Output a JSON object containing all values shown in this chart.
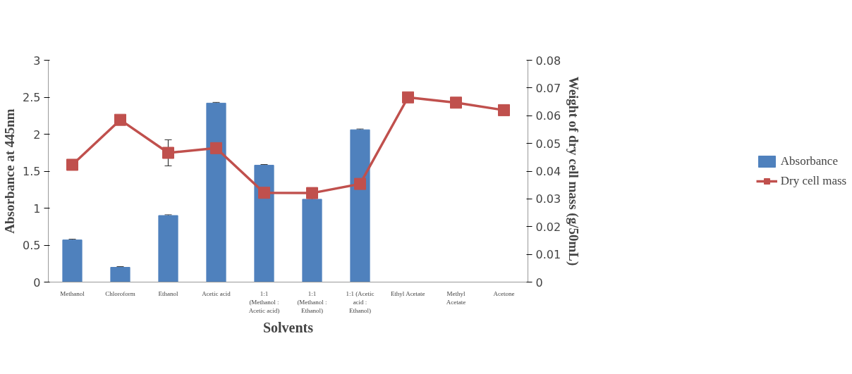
{
  "chart_data": {
    "type": "bar",
    "xlabel": "Solvents",
    "ylabel": "Absorbance at 445nm",
    "y2label": "Weight of dry cell mass (g/50mL)",
    "categories": [
      "Methanol",
      "Chloroform",
      "Ethanol",
      "Acetic acid",
      "1:1\n(Methanol :\nAcetic acid)",
      "1:1\n(Methanol :\nEthanol)",
      "1:1 (Acetic\nacid :\nEthanol)",
      "Ethyl Acetate",
      "Methyl\nAcetate",
      "Acetone"
    ],
    "series": [
      {
        "name": "Absorbance",
        "color": "#4f81bd",
        "values": [
          0.57,
          0.2,
          0.9,
          2.42,
          1.58,
          1.12,
          2.06,
          null,
          null,
          null
        ],
        "errors": [
          0.01,
          0.01,
          0.01,
          0.01,
          0.01,
          0.01,
          0.01,
          null,
          null,
          null
        ]
      },
      {
        "name": "Dry cell mass",
        "type": "line",
        "axis": "y2",
        "color": "#c0504d",
        "marker": "square",
        "values": [
          0.0423,
          0.0585,
          0.0466,
          0.0483,
          0.0322,
          0.0321,
          0.0354,
          0.0666,
          0.0647,
          0.062
        ],
        "errors": [
          null,
          null,
          0.0047,
          null,
          null,
          null,
          null,
          null,
          null,
          null
        ]
      }
    ],
    "ylim": [
      0,
      3
    ],
    "yticks": [
      0,
      0.5,
      1,
      1.5,
      2,
      2.5,
      3
    ],
    "y2lim": [
      0,
      0.08
    ],
    "y2ticks": [
      0,
      0.01,
      0.02,
      0.03,
      0.04,
      0.05,
      0.06,
      0.07,
      0.08
    ],
    "grid": false,
    "legend": "right"
  }
}
